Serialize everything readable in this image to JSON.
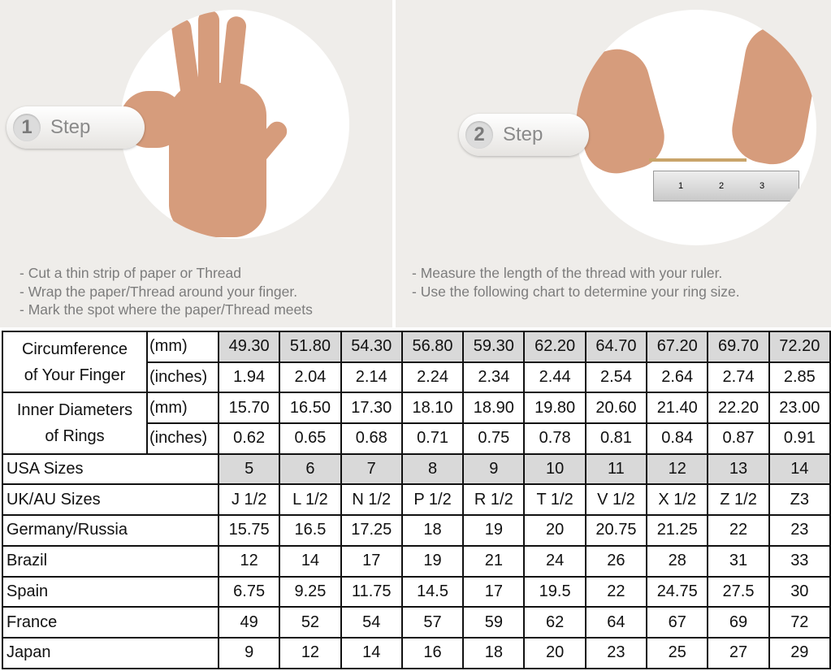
{
  "step1": {
    "num": "1",
    "label": "Step",
    "lines": [
      "- Cut a thin strip of paper or Thread",
      "- Wrap the paper/Thread around your finger.",
      "- Mark the spot where the paper/Thread meets"
    ]
  },
  "step2": {
    "num": "2",
    "label": "Step",
    "lines": [
      "- Measure the length of the thread with your ruler.",
      "- Use the following chart to determine your ring size."
    ]
  },
  "ruler_marks": [
    "1",
    "2",
    "3"
  ],
  "table": {
    "circ_label": [
      "Circumference",
      "of Your Finger"
    ],
    "diam_label": [
      "Inner Diameters",
      "of Rings"
    ],
    "unit_mm": "(mm)",
    "unit_in": "(inches)",
    "circ_mm": [
      "49.30",
      "51.80",
      "54.30",
      "56.80",
      "59.30",
      "62.20",
      "64.70",
      "67.20",
      "69.70",
      "72.20"
    ],
    "circ_in": [
      "1.94",
      "2.04",
      "2.14",
      "2.24",
      "2.34",
      "2.44",
      "2.54",
      "2.64",
      "2.74",
      "2.85"
    ],
    "diam_mm": [
      "15.70",
      "16.50",
      "17.30",
      "18.10",
      "18.90",
      "19.80",
      "20.60",
      "21.40",
      "22.20",
      "23.00"
    ],
    "diam_in": [
      "0.62",
      "0.65",
      "0.68",
      "0.71",
      "0.75",
      "0.78",
      "0.81",
      "0.84",
      "0.87",
      "0.91"
    ],
    "rows": [
      {
        "label": "USA Sizes",
        "values": [
          "5",
          "6",
          "7",
          "8",
          "9",
          "10",
          "11",
          "12",
          "13",
          "14"
        ]
      },
      {
        "label": "UK/AU Sizes",
        "values": [
          "J 1/2",
          "L 1/2",
          "N 1/2",
          "P 1/2",
          "R 1/2",
          "T 1/2",
          "V 1/2",
          "X 1/2",
          "Z 1/2",
          "Z3"
        ]
      },
      {
        "label": "Germany/Russia",
        "values": [
          "15.75",
          "16.5",
          "17.25",
          "18",
          "19",
          "20",
          "20.75",
          "21.25",
          "22",
          "23"
        ]
      },
      {
        "label": "Brazil",
        "values": [
          "12",
          "14",
          "17",
          "19",
          "21",
          "24",
          "26",
          "28",
          "31",
          "33"
        ]
      },
      {
        "label": "Spain",
        "values": [
          "6.75",
          "9.25",
          "11.75",
          "14.5",
          "17",
          "19.5",
          "22",
          "24.75",
          "27.5",
          "30"
        ]
      },
      {
        "label": "France",
        "values": [
          "49",
          "52",
          "54",
          "57",
          "59",
          "62",
          "64",
          "67",
          "69",
          "72"
        ]
      },
      {
        "label": "Japan",
        "values": [
          "9",
          "12",
          "14",
          "16",
          "18",
          "20",
          "23",
          "25",
          "27",
          "29"
        ]
      }
    ]
  }
}
